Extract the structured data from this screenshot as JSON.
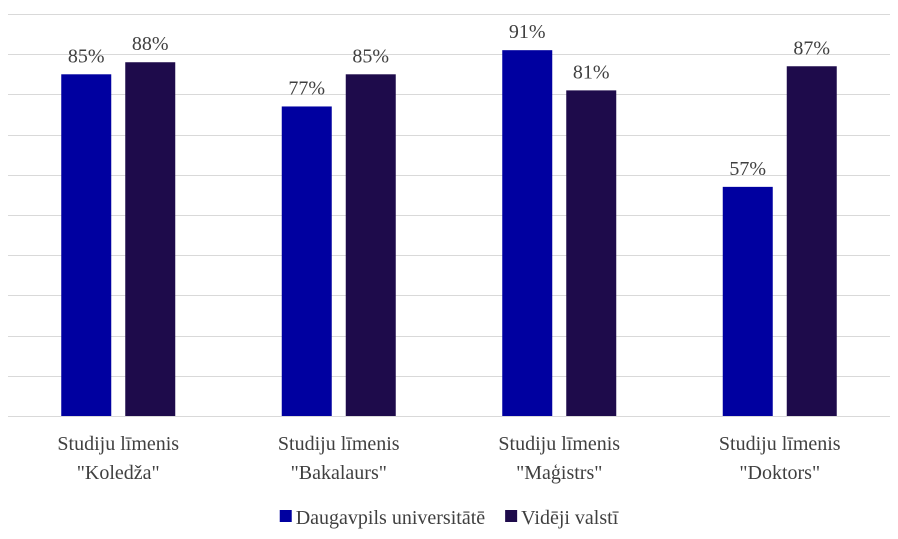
{
  "chart_data": {
    "type": "bar",
    "categories": [
      [
        "Studiju līmenis",
        "\"Koledža\""
      ],
      [
        "Studiju līmenis",
        "\"Bakalaurs\""
      ],
      [
        "Studiju līmenis",
        "\"Maģistrs\""
      ],
      [
        "Studiju līmenis",
        "\"Doktors\""
      ]
    ],
    "series": [
      {
        "name": "Daugavpils universitātē",
        "color": "#0000a0",
        "values": [
          85,
          77,
          91,
          57
        ],
        "labels": [
          "85%",
          "77%",
          "91%",
          "57%"
        ]
      },
      {
        "name": "Vidēji valstī",
        "color": "#1e0b4b",
        "values": [
          88,
          85,
          81,
          87
        ],
        "labels": [
          "88%",
          "85%",
          "81%",
          "87%"
        ]
      }
    ],
    "ylim": [
      0,
      100
    ],
    "gridlines": true,
    "y_axis_labels_shown": false,
    "legend_position": "bottom-center",
    "title": "",
    "xlabel": "",
    "ylabel": ""
  }
}
